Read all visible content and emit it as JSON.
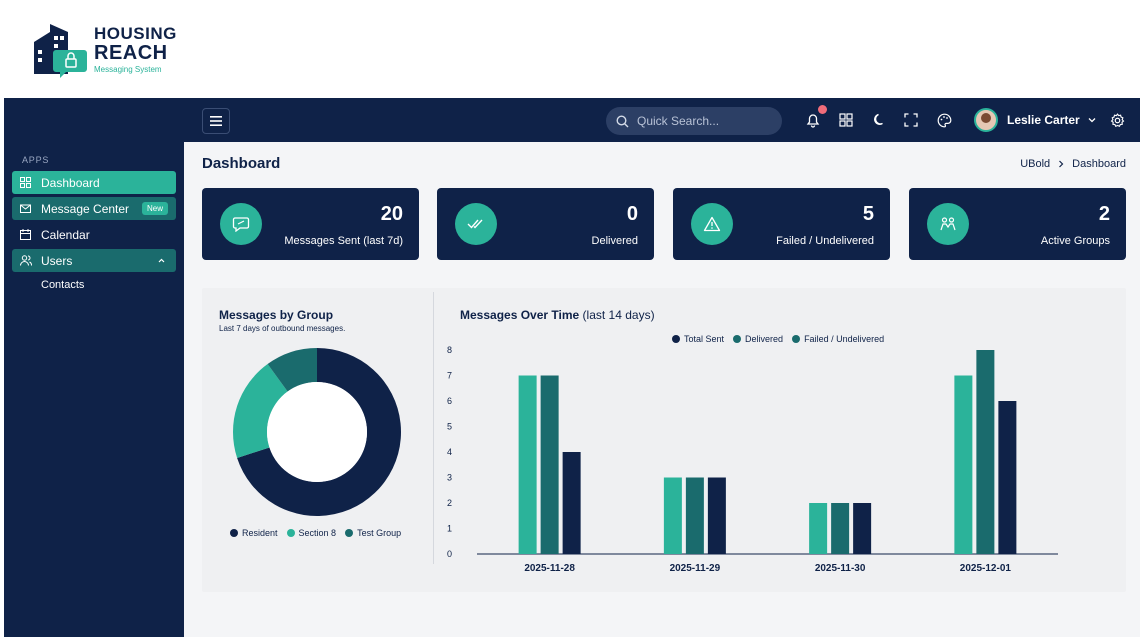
{
  "brand": {
    "line1": "HOUSING",
    "line2": "REACH",
    "tagline": "Messaging System"
  },
  "colors": {
    "navy": "#0f2248",
    "teal": "#2bb39a",
    "darkTeal": "#1a6b6d",
    "alert": "#f06c7a"
  },
  "topbar": {
    "search_placeholder": "Quick Search...",
    "user_name": "Leslie Carter",
    "icons": [
      "menu-icon",
      "bell-icon",
      "apps-grid-icon",
      "moon-icon",
      "fullscreen-icon",
      "palette-icon",
      "chevron-down-icon",
      "gear-icon"
    ]
  },
  "sidebar": {
    "section_title": "APPS",
    "items": [
      {
        "label": "Dashboard",
        "icon": "dashboard-icon"
      },
      {
        "label": "Message Center",
        "icon": "mail-icon",
        "badge": "New"
      },
      {
        "label": "Calendar",
        "icon": "calendar-icon"
      },
      {
        "label": "Users",
        "icon": "users-icon"
      }
    ],
    "sub_items": [
      {
        "label": "Contacts"
      }
    ]
  },
  "page": {
    "title": "Dashboard",
    "breadcrumb": [
      "UBold",
      "Dashboard"
    ]
  },
  "cards": [
    {
      "value": "20",
      "label": "Messages Sent (last 7d)",
      "icon": "chat-icon"
    },
    {
      "value": "0",
      "label": "Delivered",
      "icon": "double-check-icon"
    },
    {
      "value": "5",
      "label": "Failed / Undelivered",
      "icon": "warning-icon"
    },
    {
      "value": "2",
      "label": "Active Groups",
      "icon": "group-icon"
    }
  ],
  "group_chart": {
    "title": "Messages by Group",
    "subtitle": "Last 7 days of outbound messages.",
    "legend": [
      "Resident",
      "Section 8",
      "Test Group"
    ]
  },
  "time_chart": {
    "title": "Messages Over Time",
    "title_suffix": "(last 14 days)",
    "legend": [
      "Total Sent",
      "Delivered",
      "Failed / Undelivered"
    ]
  },
  "chart_data": [
    {
      "type": "pie",
      "title": "Messages by Group",
      "subtitle": "Last 7 days of outbound messages.",
      "categories": [
        "Resident",
        "Section 8",
        "Test Group"
      ],
      "values": [
        14,
        4,
        2
      ],
      "colors": [
        "#0f2248",
        "#2bb39a",
        "#1a6b6d"
      ],
      "legend": "bottom"
    },
    {
      "type": "bar",
      "title": "Messages Over Time (last 14 days)",
      "categories": [
        "2025-11-28",
        "2025-11-29",
        "2025-11-30",
        "2025-12-01"
      ],
      "series": [
        {
          "name": "Total Sent",
          "values": [
            7,
            3,
            2,
            7
          ],
          "color": "#2bb39a"
        },
        {
          "name": "Delivered",
          "values": [
            7,
            3,
            2,
            8
          ],
          "color": "#1a6b6d"
        },
        {
          "name": "Failed / Undelivered",
          "values": [
            4,
            3,
            2,
            6
          ],
          "color": "#0f2248"
        }
      ],
      "ylim": [
        0,
        8
      ],
      "yticks": [
        "0",
        "1",
        "2",
        "3",
        "4",
        "5",
        "6",
        "7",
        "8"
      ],
      "legend": "top-center"
    }
  ]
}
